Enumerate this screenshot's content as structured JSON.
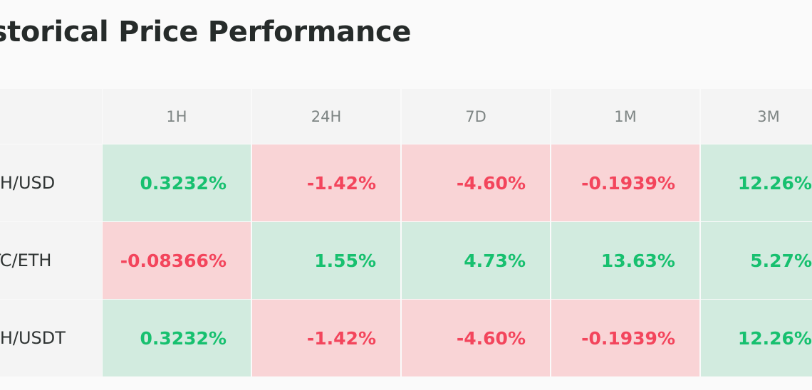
{
  "page": {
    "title": "Historical Price Performance"
  },
  "colors": {
    "positive_bg": "#d2ebdf",
    "positive_text": "#17c06f",
    "negative_bg": "#f9d4d6",
    "negative_text": "#f3455c",
    "header_bg": "#f4f4f4",
    "header_text": "#7e8584"
  },
  "table": {
    "columns": [
      "1H",
      "24H",
      "7D",
      "1M",
      "3M"
    ],
    "rows": [
      {
        "pair": "ETH/USD",
        "values": [
          {
            "text": "0.3232%",
            "trend": "positive"
          },
          {
            "text": "-1.42%",
            "trend": "negative"
          },
          {
            "text": "-4.60%",
            "trend": "negative"
          },
          {
            "text": "-0.1939%",
            "trend": "negative"
          },
          {
            "text": "12.26%",
            "trend": "positive"
          }
        ]
      },
      {
        "pair": "BTC/ETH",
        "values": [
          {
            "text": "-0.08366%",
            "trend": "negative"
          },
          {
            "text": "1.55%",
            "trend": "positive"
          },
          {
            "text": "4.73%",
            "trend": "positive"
          },
          {
            "text": "13.63%",
            "trend": "positive"
          },
          {
            "text": "5.27%",
            "trend": "positive"
          }
        ]
      },
      {
        "pair": "ETH/USDT",
        "values": [
          {
            "text": "0.3232%",
            "trend": "positive"
          },
          {
            "text": "-1.42%",
            "trend": "negative"
          },
          {
            "text": "-4.60%",
            "trend": "negative"
          },
          {
            "text": "-0.1939%",
            "trend": "negative"
          },
          {
            "text": "12.26%",
            "trend": "positive"
          }
        ]
      }
    ]
  }
}
